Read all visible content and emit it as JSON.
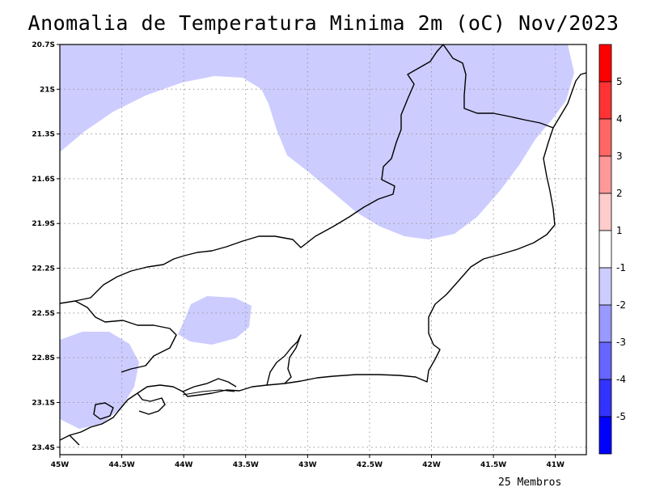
{
  "title": "Anomalia de Temperatura Minima 2m (oC) Nov/2023",
  "footnote": "25 Membros",
  "map": {
    "lat_ticks": [
      "20.7S",
      "21S",
      "21.3S",
      "21.6S",
      "21.9S",
      "22.2S",
      "22.5S",
      "22.8S",
      "23.1S",
      "23.4S"
    ],
    "lon_ticks": [
      "45W",
      "44.5W",
      "44W",
      "43.5W",
      "43W",
      "42.5W",
      "42W",
      "41.5W",
      "41W"
    ],
    "lat_range": [
      -23.45,
      -20.7
    ],
    "lon_range": [
      -45.0,
      -40.75
    ],
    "anomaly_fill_color": "#ccccff",
    "grid": "dotted"
  },
  "colorbar": {
    "labels": [
      "5",
      "4",
      "3",
      "2",
      "1",
      "-1",
      "-2",
      "-3",
      "-4",
      "-5"
    ],
    "colors": [
      "#ff0000",
      "#ff3333",
      "#ff6666",
      "#ff9999",
      "#ffcccc",
      "#ffffff",
      "#ccccff",
      "#9999ff",
      "#6666ff",
      "#3333ff",
      "#0000ff"
    ]
  }
}
